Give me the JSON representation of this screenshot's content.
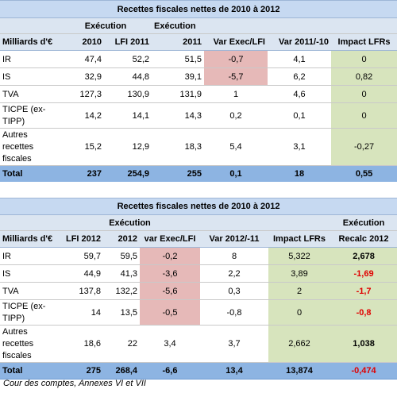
{
  "table1": {
    "title": "Recettes fiscales nettes de 2010 à 2012",
    "sub1": "Exécution",
    "sub2": "Exécution",
    "headers": [
      "Milliards d'€",
      "2010",
      "LFI 2011",
      "2011",
      "Var Exec/LFI",
      "Var 2011/-10",
      "Impact LFRs"
    ],
    "rows": [
      {
        "label": "IR",
        "v": [
          "47,4",
          "52,2",
          "51,5",
          "-0,7",
          "4,1",
          "0"
        ]
      },
      {
        "label": "IS",
        "v": [
          "32,9",
          "44,8",
          "39,1",
          "-5,7",
          "6,2",
          "0,82"
        ]
      },
      {
        "label": "TVA",
        "v": [
          "127,3",
          "130,9",
          "131,9",
          "1",
          "4,6",
          "0"
        ]
      },
      {
        "label": "TICPE (ex-TIPP)",
        "v": [
          "14,2",
          "14,1",
          "14,3",
          "0,2",
          "0,1",
          "0"
        ]
      },
      {
        "label": "Autres recettes fiscales",
        "v": [
          "15,2",
          "12,9",
          "18,3",
          "5,4",
          "3,1",
          "-0,27"
        ]
      }
    ],
    "total": {
      "label": "Total",
      "v": [
        "237",
        "254,9",
        "255",
        "0,1",
        "18",
        "0,55"
      ]
    }
  },
  "table2": {
    "title": "Recettes fiscales nettes de 2010 à 2012",
    "sub1": "Exécution",
    "sub2": "Exécution",
    "headers": [
      "Milliards d'€",
      "LFI 2012",
      "2012",
      "var Exec/LFI",
      "Var 2012/-11",
      "Impact LFRs",
      "Recalc 2012"
    ],
    "rows": [
      {
        "label": "IR",
        "v": [
          "59,7",
          "59,5",
          "-0,2",
          "8",
          "5,322",
          "2,678"
        ]
      },
      {
        "label": "IS",
        "v": [
          "44,9",
          "41,3",
          "-3,6",
          "2,2",
          "3,89",
          "-1,69"
        ]
      },
      {
        "label": "TVA",
        "v": [
          "137,8",
          "132,2",
          "-5,6",
          "0,3",
          "2",
          "-1,7"
        ]
      },
      {
        "label": "TICPE (ex-TIPP)",
        "v": [
          "14",
          "13,5",
          "-0,5",
          "-0,8",
          "0",
          "-0,8"
        ]
      },
      {
        "label": "Autres recettes fiscales",
        "v": [
          "18,6",
          "22",
          "3,4",
          "3,7",
          "2,662",
          "1,038"
        ]
      }
    ],
    "total": {
      "label": "Total",
      "v": [
        "275",
        "268,4",
        "-6,6",
        "13,4",
        "13,874",
        "-0,474"
      ]
    }
  },
  "source": "Cour des comptes, Annexes VI et VII",
  "colors": {
    "pink": "#e6b9b8",
    "green": "#d7e4bd",
    "header": "#c6d9f1",
    "total": "#8db4e2",
    "negative": "#e00000"
  }
}
